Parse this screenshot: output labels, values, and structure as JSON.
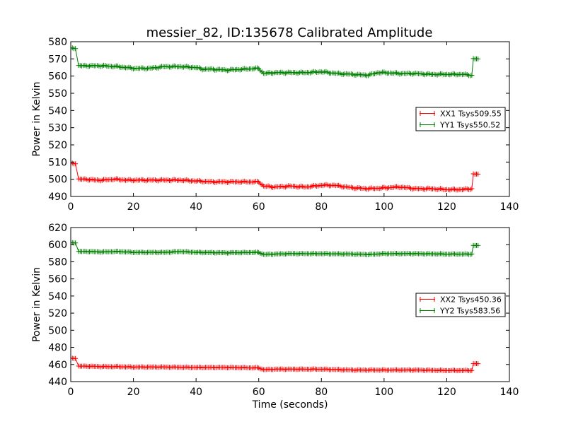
{
  "figure": {
    "title": "messier_82, ID:135678 Calibrated Amplitude"
  },
  "chart_data": [
    {
      "type": "line",
      "title": "messier_82, ID:135678 Calibrated Amplitude",
      "xlabel": "",
      "ylabel": "Power in Kelvin",
      "xlim": [
        0,
        140
      ],
      "ylim": [
        490,
        580
      ],
      "xticks": [
        0,
        20,
        40,
        60,
        80,
        100,
        120,
        140
      ],
      "yticks": [
        490,
        500,
        510,
        520,
        530,
        540,
        550,
        560,
        570,
        580
      ],
      "grid": false,
      "legend_position": "center-right",
      "marker": "+",
      "series": [
        {
          "name": "XX1 Tsys509.55",
          "color": "#ff0000",
          "points": [
            [
              0.5,
              509
            ],
            [
              1.5,
              509
            ],
            [
              2.5,
              500
            ],
            [
              5,
              500
            ],
            [
              8,
              499.5
            ],
            [
              10,
              499.5
            ],
            [
              14,
              500
            ],
            [
              18,
              499.5
            ],
            [
              20,
              499.5
            ],
            [
              25,
              499.5
            ],
            [
              30,
              499.5
            ],
            [
              35,
              499.5
            ],
            [
              40,
              499
            ],
            [
              45,
              498.5
            ],
            [
              50,
              498.5
            ],
            [
              55,
              498.5
            ],
            [
              60,
              498.5
            ],
            [
              61.5,
              496
            ],
            [
              65,
              495.5
            ],
            [
              70,
              496
            ],
            [
              75,
              495.5
            ],
            [
              80,
              496.5
            ],
            [
              84,
              496.5
            ],
            [
              90,
              495
            ],
            [
              95,
              494.5
            ],
            [
              100,
              495
            ],
            [
              105,
              495.5
            ],
            [
              110,
              494.5
            ],
            [
              115,
              494.5
            ],
            [
              120,
              494
            ],
            [
              125,
              494
            ],
            [
              128,
              494.5
            ],
            [
              128.5,
              503
            ],
            [
              130,
              503
            ]
          ]
        },
        {
          "name": "YY1 Tsys550.52",
          "color": "#008000",
          "points": [
            [
              0.5,
              576
            ],
            [
              1.5,
              576
            ],
            [
              2.5,
              566
            ],
            [
              5,
              566
            ],
            [
              10,
              566
            ],
            [
              15,
              565.5
            ],
            [
              20,
              564.5
            ],
            [
              25,
              564.5
            ],
            [
              30,
              565.5
            ],
            [
              35,
              565.5
            ],
            [
              40,
              565
            ],
            [
              42,
              564
            ],
            [
              45,
              564
            ],
            [
              50,
              563.5
            ],
            [
              55,
              564
            ],
            [
              60,
              564.5
            ],
            [
              61.5,
              561.5
            ],
            [
              65,
              562
            ],
            [
              70,
              562
            ],
            [
              75,
              562
            ],
            [
              80,
              562.5
            ],
            [
              85,
              561.5
            ],
            [
              90,
              561
            ],
            [
              95,
              560.5
            ],
            [
              98,
              562
            ],
            [
              100,
              562
            ],
            [
              105,
              561.5
            ],
            [
              110,
              561.5
            ],
            [
              115,
              561
            ],
            [
              120,
              561
            ],
            [
              125,
              561
            ],
            [
              128,
              560.5
            ],
            [
              128.5,
              570
            ],
            [
              130,
              570
            ]
          ]
        }
      ]
    },
    {
      "type": "line",
      "title": "",
      "xlabel": "Time (seconds)",
      "ylabel": "Power in Kelvin",
      "xlim": [
        0,
        140
      ],
      "ylim": [
        440,
        620
      ],
      "xticks": [
        0,
        20,
        40,
        60,
        80,
        100,
        120,
        140
      ],
      "yticks": [
        440,
        460,
        480,
        500,
        520,
        540,
        560,
        580,
        600,
        620
      ],
      "grid": false,
      "legend_position": "center-right",
      "marker": "+",
      "series": [
        {
          "name": "XX2 Tsys450.36",
          "color": "#ff0000",
          "points": [
            [
              0.5,
              467
            ],
            [
              1.5,
              467
            ],
            [
              2.5,
              458
            ],
            [
              5,
              458
            ],
            [
              10,
              457.5
            ],
            [
              15,
              457.5
            ],
            [
              20,
              457
            ],
            [
              30,
              457
            ],
            [
              40,
              456.5
            ],
            [
              50,
              456.5
            ],
            [
              60,
              456
            ],
            [
              61.5,
              454
            ],
            [
              65,
              454.5
            ],
            [
              70,
              454.5
            ],
            [
              80,
              454.5
            ],
            [
              90,
              453.5
            ],
            [
              100,
              453.5
            ],
            [
              110,
              453.5
            ],
            [
              120,
              453
            ],
            [
              128,
              453
            ],
            [
              128.5,
              461
            ],
            [
              130,
              461
            ]
          ]
        },
        {
          "name": "YY2 Tsys583.56",
          "color": "#008000",
          "points": [
            [
              0.5,
              602
            ],
            [
              1.5,
              602
            ],
            [
              2.5,
              592
            ],
            [
              5,
              592
            ],
            [
              10,
              591.5
            ],
            [
              15,
              592
            ],
            [
              20,
              591
            ],
            [
              30,
              591
            ],
            [
              35,
              592
            ],
            [
              40,
              591
            ],
            [
              50,
              590.5
            ],
            [
              60,
              591
            ],
            [
              61.5,
              588.5
            ],
            [
              65,
              589
            ],
            [
              70,
              589.5
            ],
            [
              80,
              589.5
            ],
            [
              90,
              589
            ],
            [
              95,
              588.5
            ],
            [
              100,
              589.5
            ],
            [
              110,
              589.5
            ],
            [
              120,
              589
            ],
            [
              128,
              589
            ],
            [
              128.5,
              599
            ],
            [
              130,
              599
            ]
          ]
        }
      ]
    }
  ]
}
